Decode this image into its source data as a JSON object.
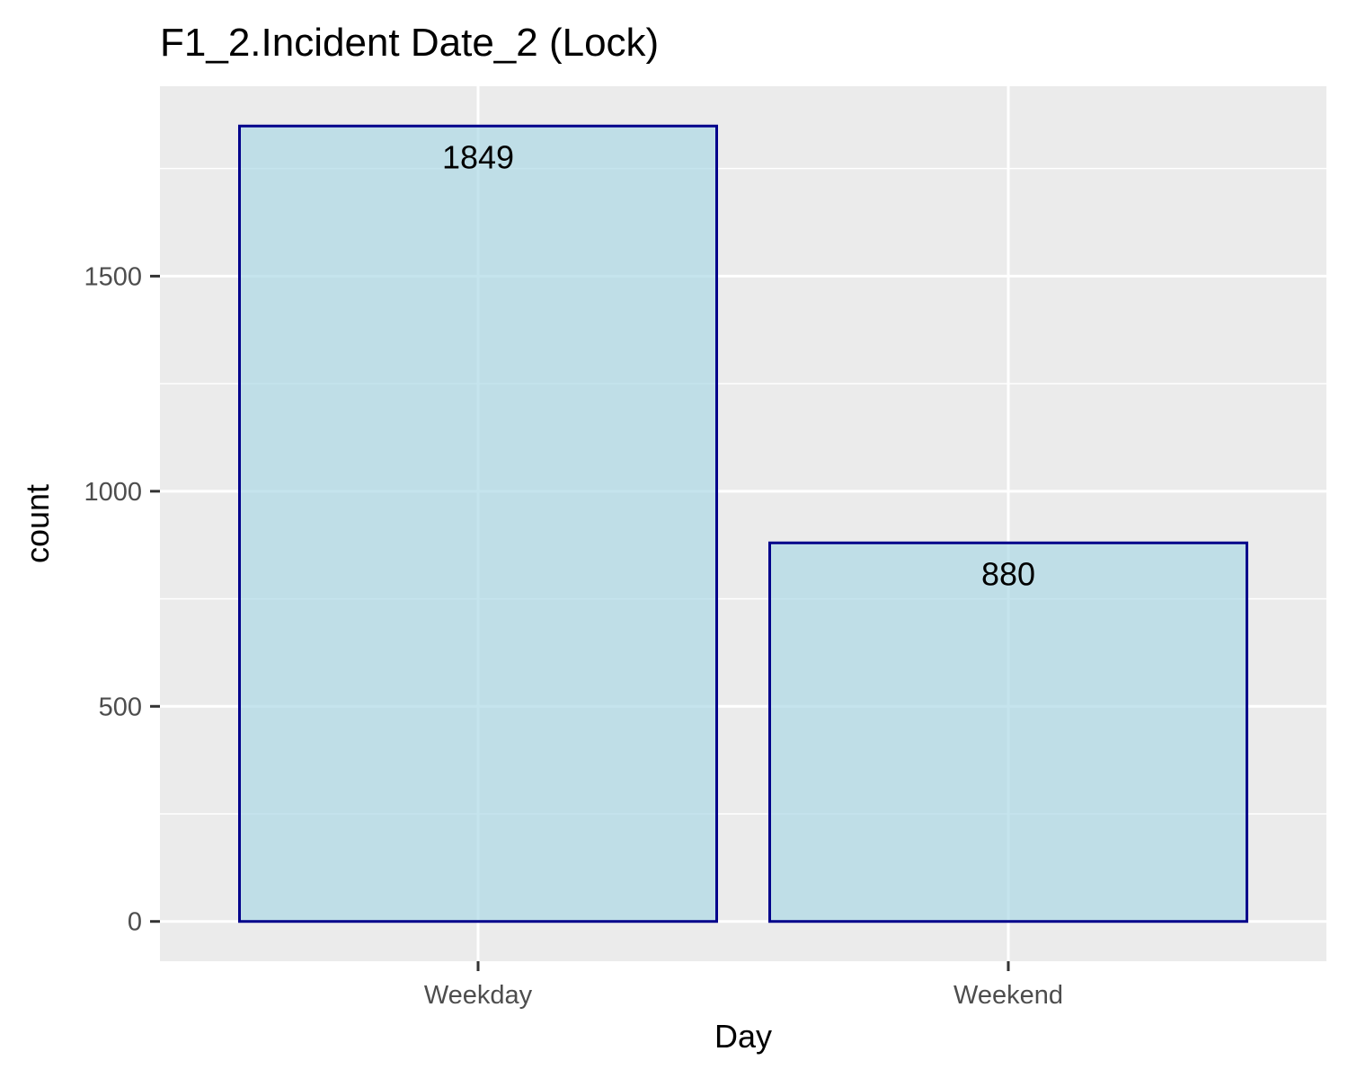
{
  "chart_data": {
    "type": "bar",
    "title": "F1_2.Incident Date_2 (Lock)",
    "xlabel": "Day",
    "ylabel": "count",
    "categories": [
      "Weekday",
      "Weekend"
    ],
    "values": [
      1849,
      880
    ],
    "data_labels": [
      "1849",
      "880"
    ],
    "yticks": [
      0,
      500,
      1000,
      1500
    ],
    "ytick_labels": [
      "0",
      "500",
      "1000",
      "1500"
    ],
    "ylim": [
      -92.45,
      1941.45
    ],
    "grid": true,
    "legend": "none",
    "colors": {
      "panel_background": "#ebebeb",
      "grid": "#ffffff",
      "bar_fill": "#add8e6",
      "bar_fill_opacity": 0.7,
      "bar_outline": "#00008b"
    }
  }
}
